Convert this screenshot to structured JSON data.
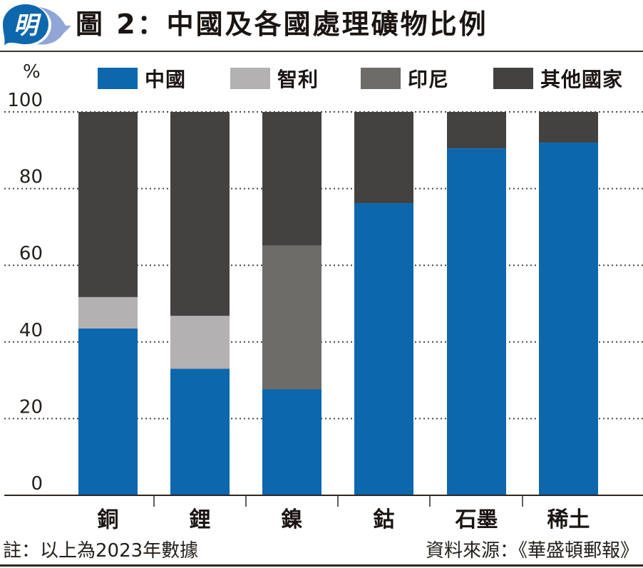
{
  "header": {
    "logo_glyph": "明",
    "title": "圖 2：中國及各國處理礦物比例"
  },
  "colors": {
    "china": "#0d67ac",
    "chile": "#b3b1b1",
    "indonesia": "#6e6c69",
    "others": "#434240",
    "logo_blue": "#0d67ac",
    "logo_light": "#8fa6d6"
  },
  "footer": {
    "note": "註：以上為2023年數據",
    "source": "資料來源：《華盛頓郵報》"
  },
  "chart_data": {
    "type": "bar",
    "stacked": true,
    "title": "圖 2：中國及各國處理礦物比例",
    "xlabel": "",
    "ylabel": "%",
    "ylim": [
      0,
      100
    ],
    "yticks": [
      0,
      20,
      40,
      60,
      80,
      100
    ],
    "grid": true,
    "legend_position": "top",
    "categories": [
      "銅",
      "鋰",
      "鎳",
      "鈷",
      "石墨",
      "稀土"
    ],
    "series": [
      {
        "name": "中國",
        "color": "#0d67ac",
        "values": [
          43.5,
          33.0,
          27.7,
          76.2,
          90.5,
          92.0
        ]
      },
      {
        "name": "智利",
        "color": "#b3b1b1",
        "values": [
          8.2,
          13.8,
          0,
          0,
          0,
          0
        ]
      },
      {
        "name": "印尼",
        "color": "#6e6c69",
        "values": [
          0,
          0,
          37.4,
          0,
          0,
          0
        ]
      },
      {
        "name": "其他國家",
        "color": "#434240",
        "values": [
          48.3,
          53.2,
          34.9,
          23.8,
          9.5,
          8.0
        ]
      }
    ]
  }
}
